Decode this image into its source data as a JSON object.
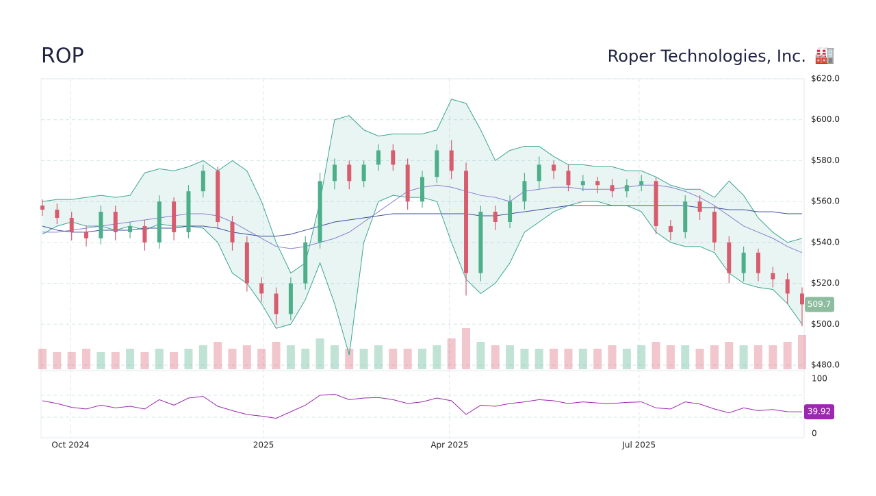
{
  "chart_data": {
    "type": "candlestick",
    "title": "ROP",
    "subtitle": "Roper Technologies, Inc.",
    "icon": "🏭",
    "xlim": [
      0,
      52
    ],
    "xticks": [
      {
        "value": 1.92,
        "label": "Oct 2024"
      },
      {
        "value": 15.13,
        "label": "2025"
      },
      {
        "value": 27.87,
        "label": "Apr 2025"
      },
      {
        "value": 40.84,
        "label": "Jul 2025"
      }
    ],
    "ylim": [
      480,
      620
    ],
    "yticks": [
      {
        "value": 480,
        "label": "$480.0"
      },
      {
        "value": 500,
        "label": "$500.0"
      },
      {
        "value": 520,
        "label": "$520.0"
      },
      {
        "value": 540,
        "label": "$540.0"
      },
      {
        "value": 560,
        "label": "$560.0"
      },
      {
        "value": 580,
        "label": "$580.0"
      },
      {
        "value": 600,
        "label": "$600.0"
      },
      {
        "value": 620,
        "label": "$620.0"
      }
    ],
    "grid": true,
    "up_color": "#4caf8a",
    "down_color": "#d65c6e",
    "band_color": "#3aa58f",
    "open": [
      558,
      556,
      552,
      545,
      542,
      555,
      545,
      548,
      540,
      560,
      545,
      565,
      575,
      550,
      540,
      520,
      515,
      505,
      520,
      540,
      570,
      578,
      570,
      578,
      585,
      578,
      560,
      572,
      585,
      575,
      525,
      555,
      550,
      560,
      570,
      578,
      575,
      568,
      570,
      568,
      565,
      568,
      570,
      548,
      545,
      560,
      555,
      540,
      525,
      535,
      525,
      522,
      515
    ],
    "high": [
      561,
      559,
      555,
      548,
      558,
      558,
      550,
      551,
      563,
      562,
      568,
      578,
      577,
      553,
      543,
      523,
      518,
      523,
      543,
      574,
      581,
      580,
      580,
      588,
      588,
      581,
      575,
      588,
      590,
      579,
      558,
      558,
      563,
      574,
      582,
      580,
      578,
      573,
      572,
      571,
      571,
      573,
      572,
      551,
      563,
      563,
      558,
      543,
      538,
      537,
      528,
      525,
      518
    ],
    "low": [
      553,
      549,
      541,
      538,
      539,
      541,
      542,
      536,
      537,
      541,
      542,
      562,
      547,
      536,
      516,
      511,
      500,
      502,
      517,
      537,
      566,
      566,
      567,
      575,
      575,
      556,
      557,
      569,
      571,
      514,
      521,
      546,
      547,
      556,
      566,
      571,
      565,
      565,
      564,
      562,
      562,
      565,
      544,
      541,
      542,
      551,
      536,
      520,
      521,
      521,
      518,
      510,
      499
    ],
    "close": [
      556,
      552,
      545,
      542,
      555,
      545,
      548,
      540,
      560,
      545,
      565,
      575,
      550,
      540,
      520,
      515,
      505,
      520,
      540,
      570,
      578,
      570,
      578,
      585,
      578,
      560,
      572,
      585,
      575,
      525,
      555,
      550,
      560,
      570,
      578,
      575,
      568,
      570,
      568,
      565,
      568,
      570,
      548,
      545,
      560,
      555,
      540,
      525,
      535,
      525,
      522,
      515,
      509.7
    ],
    "volume": [
      0.6,
      0.5,
      0.5,
      0.6,
      0.5,
      0.5,
      0.6,
      0.5,
      0.6,
      0.5,
      0.6,
      0.7,
      0.8,
      0.6,
      0.7,
      0.6,
      0.8,
      0.7,
      0.6,
      0.9,
      0.7,
      0.6,
      0.6,
      0.7,
      0.6,
      0.6,
      0.6,
      0.7,
      0.9,
      1.2,
      0.8,
      0.7,
      0.7,
      0.6,
      0.6,
      0.6,
      0.6,
      0.6,
      0.6,
      0.7,
      0.6,
      0.7,
      0.8,
      0.7,
      0.7,
      0.6,
      0.7,
      0.8,
      0.7,
      0.7,
      0.7,
      0.8,
      1.0
    ],
    "bollinger_upper": [
      560,
      561,
      561,
      562,
      563,
      562,
      563,
      574,
      576,
      575,
      577,
      580,
      575,
      580,
      575,
      560,
      540,
      525,
      530,
      560,
      600,
      602,
      595,
      592,
      593,
      593,
      593,
      595,
      610,
      608,
      595,
      580,
      585,
      587,
      587,
      582,
      578,
      578,
      577,
      577,
      575,
      575,
      572,
      568,
      566,
      566,
      562,
      570,
      563,
      552,
      545,
      540,
      542
    ],
    "bollinger_lower": [
      544,
      548,
      550,
      548,
      548,
      546,
      548,
      546,
      549,
      548,
      548,
      547,
      540,
      525,
      520,
      510,
      498,
      500,
      512,
      530,
      510,
      485,
      540,
      560,
      563,
      562,
      562,
      560,
      540,
      522,
      515,
      520,
      530,
      545,
      550,
      555,
      558,
      560,
      560,
      558,
      558,
      555,
      545,
      540,
      538,
      538,
      535,
      525,
      520,
      518,
      517,
      510,
      500
    ],
    "series": [
      {
        "color": "#8a7fd0",
        "values": [
          545,
          545,
          546,
          547,
          548,
          549,
          550,
          551,
          552,
          553,
          554,
          554,
          553,
          550,
          546,
          542,
          538,
          537,
          538,
          540,
          542,
          545,
          550,
          555,
          560,
          565,
          567,
          568,
          567,
          565,
          563,
          562,
          560,
          565,
          566,
          567,
          567,
          566,
          566,
          566,
          567,
          568,
          568,
          567,
          565,
          562,
          558,
          553,
          548,
          545,
          542,
          538,
          535
        ]
      },
      {
        "color": "#3a4fa0",
        "values": [
          548,
          546,
          545,
          545,
          546,
          546,
          546,
          547,
          547,
          547,
          548,
          548,
          547,
          545,
          544,
          543,
          543,
          544,
          546,
          548,
          550,
          551,
          552,
          553,
          554,
          554,
          554,
          554,
          554,
          554,
          553,
          553,
          554,
          555,
          556,
          557,
          558,
          558,
          558,
          558,
          558,
          558,
          558,
          558,
          558,
          557,
          557,
          556,
          556,
          555,
          555,
          554,
          554
        ]
      }
    ],
    "rsi": {
      "color": "#9c27b0",
      "ylim": [
        0,
        100
      ],
      "yticks": [
        0,
        100
      ],
      "levels": [
        30,
        70
      ],
      "values": [
        60,
        55,
        48,
        45,
        52,
        47,
        50,
        45,
        62,
        52,
        65,
        68,
        50,
        42,
        35,
        32,
        28,
        40,
        52,
        70,
        72,
        62,
        65,
        66,
        62,
        55,
        58,
        65,
        60,
        35,
        52,
        50,
        55,
        58,
        62,
        60,
        55,
        58,
        56,
        55,
        57,
        58,
        47,
        45,
        58,
        54,
        45,
        38,
        47,
        42,
        44,
        40,
        39.92
      ]
    }
  }
}
